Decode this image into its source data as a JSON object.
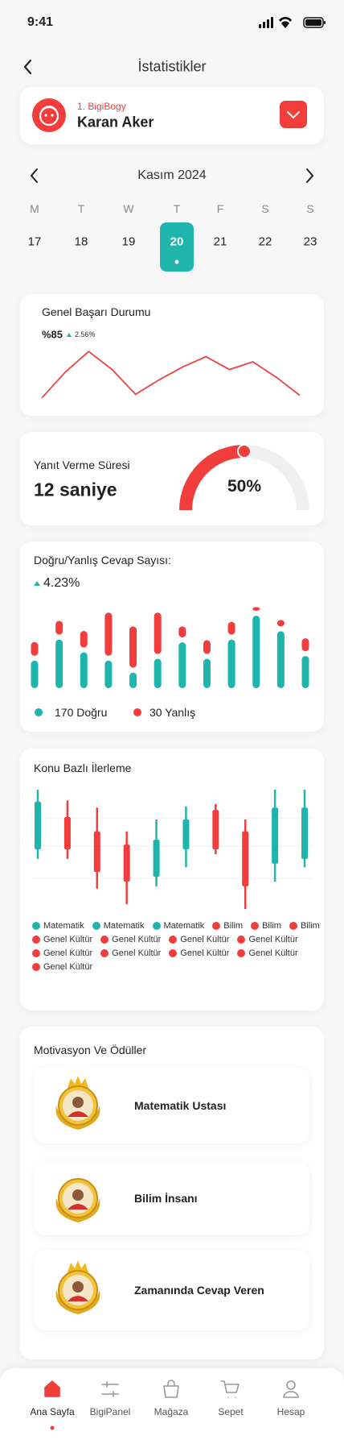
{
  "status_bar": {
    "time": "9:41"
  },
  "header": {
    "title": "İstatistikler"
  },
  "profile": {
    "rank": "1. BigiBogy",
    "name": "Karan Aker"
  },
  "calendar": {
    "month": "Kasım 2024",
    "weekdays": [
      "M",
      "T",
      "W",
      "T",
      "F",
      "S",
      "S"
    ],
    "dates": [
      "17",
      "18",
      "19",
      "20",
      "21",
      "22",
      "23"
    ],
    "selected": 3
  },
  "success": {
    "title": "Genel Başarı Durumu",
    "value": "%85",
    "change": "2.56%",
    "color": "#e84545",
    "ylim": [
      0,
      100
    ],
    "values": [
      5,
      55,
      95,
      60,
      12,
      40,
      65,
      85,
      60,
      75,
      45,
      10
    ]
  },
  "response_time": {
    "title": "Yanıt Verme Süresi",
    "value": "12 saniye",
    "range": [
      0,
      100
    ],
    "gauge": {
      "value": 50,
      "label": "50%"
    }
  },
  "answers": {
    "title": "Doğru/Yanlış Cevap Sayısı:",
    "change": "4.23%",
    "ylim": [
      0,
      100
    ],
    "series": [
      {
        "name": "170 Doğru",
        "color": "#1fb5ad",
        "values": [
          30,
          53,
          39,
          30,
          17,
          32,
          50,
          32,
          53,
          79,
          62,
          35
        ]
      },
      {
        "name": "30 Yanlış",
        "color": "#f23d3d",
        "values": [
          15,
          15,
          18,
          47,
          45,
          45,
          12,
          15,
          14,
          4,
          7,
          14
        ]
      }
    ]
  },
  "topics": {
    "title": "Konu Bazlı İlerleme",
    "ylim": [
      0,
      100
    ],
    "candles": [
      {
        "open": 50,
        "close": 90,
        "high": 100,
        "low": 42,
        "color": "#1fb5ad"
      },
      {
        "open": 77,
        "close": 50,
        "high": 91,
        "low": 42,
        "color": "#f23d3d"
      },
      {
        "open": 65,
        "close": 31,
        "high": 85,
        "low": 17,
        "color": "#f23d3d"
      },
      {
        "open": 54,
        "close": 23,
        "high": 65,
        "low": 4,
        "color": "#f23d3d"
      },
      {
        "open": 27,
        "close": 58,
        "high": 75,
        "low": 19,
        "color": "#1fb5ad"
      },
      {
        "open": 50,
        "close": 75,
        "high": 86,
        "low": 35,
        "color": "#1fb5ad"
      },
      {
        "open": 83,
        "close": 50,
        "high": 88,
        "low": 46,
        "color": "#f23d3d"
      },
      {
        "open": 65,
        "close": 19,
        "high": 75,
        "low": 0,
        "color": "#f23d3d"
      },
      {
        "open": 38,
        "close": 85,
        "high": 100,
        "low": 23,
        "color": "#1fb5ad"
      },
      {
        "open": 42,
        "close": 85,
        "high": 100,
        "low": 35,
        "color": "#1fb5ad"
      }
    ],
    "legend": [
      {
        "name": "Matematik",
        "color": "#1fb5ad"
      },
      {
        "name": "Matematik",
        "color": "#1fb5ad"
      },
      {
        "name": "Matematik",
        "color": "#1fb5ad"
      },
      {
        "name": "Bilim",
        "color": "#f23d3d"
      },
      {
        "name": "Bilim",
        "color": "#f23d3d"
      },
      {
        "name": "Bilim",
        "color": "#f23d3d"
      },
      {
        "name": "Genel Kültür",
        "color": "#f23d3d"
      },
      {
        "name": "Genel Kültür",
        "color": "#f23d3d"
      },
      {
        "name": "Genel Kültür",
        "color": "#f23d3d"
      },
      {
        "name": "Genel Kültür",
        "color": "#f23d3d"
      },
      {
        "name": "Genel Kültür",
        "color": "#f23d3d"
      },
      {
        "name": "Genel Kültür",
        "color": "#f23d3d"
      },
      {
        "name": "Genel Kültür",
        "color": "#f23d3d"
      },
      {
        "name": "Genel Kültür",
        "color": "#f23d3d"
      },
      {
        "name": "Genel Kültür",
        "color": "#f23d3d"
      }
    ]
  },
  "rewards": {
    "title": "Motivasyon Ve Ödüller",
    "items": [
      "Matematik Ustası",
      "Bilim İnsanı",
      "Zamanında Cevap Veren"
    ]
  },
  "nav": {
    "items": [
      "Ana Sayfa",
      "BigiPanel",
      "Mağaza",
      "Sepet",
      "Hesap"
    ],
    "active": 0
  }
}
